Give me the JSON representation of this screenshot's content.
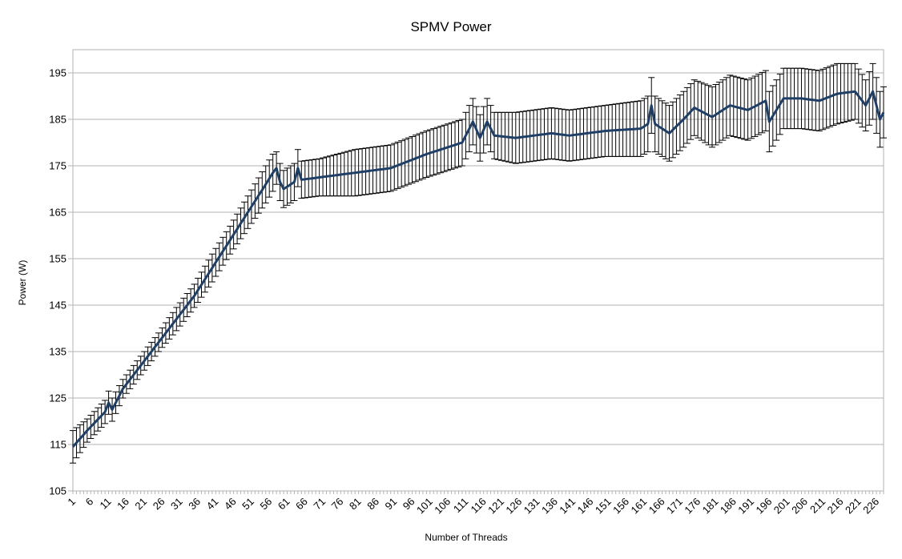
{
  "chart_data": {
    "type": "line",
    "title": "SPMV Power",
    "xlabel": "Number of Threads",
    "ylabel": "Power (W)",
    "ylim": [
      105,
      200
    ],
    "y_ticks": [
      105,
      115,
      125,
      135,
      145,
      155,
      165,
      175,
      185,
      195
    ],
    "x_range": [
      1,
      228
    ],
    "x_ticks": [
      1,
      6,
      11,
      16,
      21,
      26,
      31,
      36,
      41,
      46,
      51,
      56,
      61,
      66,
      71,
      76,
      81,
      86,
      91,
      96,
      101,
      106,
      111,
      116,
      121,
      126,
      131,
      136,
      141,
      146,
      151,
      156,
      161,
      166,
      171,
      176,
      181,
      186,
      191,
      196,
      201,
      206,
      211,
      216,
      221,
      226
    ],
    "grid": "horizontal",
    "legend": "none",
    "line_color": "#1f3f66",
    "error_bar_color": "#000000",
    "series": [
      {
        "color": "#1f3f66",
        "keypoints": [
          [
            1,
            114.5,
            3.5
          ],
          [
            5,
            118.0,
            2.5
          ],
          [
            10,
            122.0,
            2.5
          ],
          [
            11,
            124.0,
            2.5
          ],
          [
            12,
            122.5,
            2.5
          ],
          [
            15,
            127.0,
            2.0
          ],
          [
            20,
            132.0,
            2.0
          ],
          [
            25,
            137.0,
            2.0
          ],
          [
            30,
            142.0,
            2.5
          ],
          [
            35,
            147.0,
            2.5
          ],
          [
            40,
            153.0,
            3.0
          ],
          [
            45,
            159.0,
            3.0
          ],
          [
            50,
            165.0,
            3.5
          ],
          [
            55,
            171.0,
            4.0
          ],
          [
            57,
            173.5,
            4.0
          ],
          [
            58,
            174.5,
            3.5
          ],
          [
            59,
            171.5,
            4.0
          ],
          [
            60,
            170.0,
            4.0
          ],
          [
            63,
            171.5,
            4.0
          ],
          [
            64,
            174.5,
            4.0
          ],
          [
            65,
            172.0,
            4.0
          ],
          [
            70,
            172.5,
            4.0
          ],
          [
            80,
            173.5,
            5.0
          ],
          [
            90,
            174.5,
            5.0
          ],
          [
            100,
            177.5,
            5.0
          ],
          [
            110,
            180.0,
            5.0
          ],
          [
            113,
            184.5,
            5.0
          ],
          [
            115,
            181.0,
            5.0
          ],
          [
            117,
            184.5,
            5.0
          ],
          [
            119,
            181.5,
            5.0
          ],
          [
            125,
            181.0,
            5.5
          ],
          [
            130,
            181.5,
            5.5
          ],
          [
            135,
            182.0,
            5.5
          ],
          [
            140,
            181.5,
            5.5
          ],
          [
            150,
            182.5,
            5.5
          ],
          [
            160,
            183.0,
            6.0
          ],
          [
            162,
            184.0,
            6.0
          ],
          [
            163,
            188.0,
            6.0
          ],
          [
            164,
            184.0,
            6.0
          ],
          [
            168,
            182.0,
            6.0
          ],
          [
            172,
            185.0,
            6.0
          ],
          [
            175,
            187.5,
            6.0
          ],
          [
            180,
            185.5,
            6.5
          ],
          [
            185,
            188.0,
            6.5
          ],
          [
            190,
            187.0,
            6.5
          ],
          [
            195,
            189.0,
            6.5
          ],
          [
            196,
            184.5,
            6.5
          ],
          [
            200,
            189.5,
            6.5
          ],
          [
            205,
            189.5,
            6.5
          ],
          [
            210,
            189.0,
            6.5
          ],
          [
            215,
            190.5,
            6.5
          ],
          [
            220,
            191.0,
            6.0
          ],
          [
            223,
            188.0,
            5.5
          ],
          [
            225,
            191.0,
            6.0
          ],
          [
            227,
            185.0,
            6.0
          ],
          [
            228,
            186.5,
            5.5
          ]
        ]
      }
    ]
  }
}
